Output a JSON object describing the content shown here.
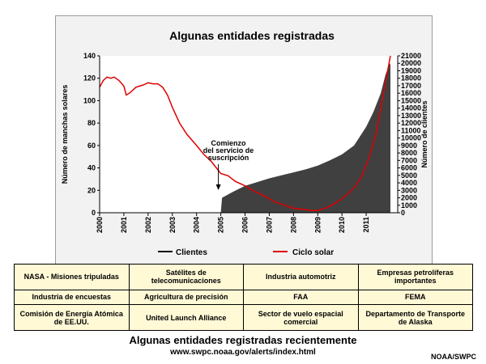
{
  "chart_data": {
    "type": "area+line",
    "title": "Algunas entidades registradas",
    "x_ticks": [
      "2000",
      "2001",
      "2002",
      "2003",
      "2004",
      "2005",
      "2006",
      "2007",
      "2008",
      "2009",
      "2010",
      "2011"
    ],
    "xlim": [
      2000,
      2012.3
    ],
    "y_left_label": "Número de manchas solares",
    "y_left_ticks": [
      0,
      20,
      40,
      60,
      80,
      100,
      120,
      140
    ],
    "y_left_lim": [
      0,
      140
    ],
    "y_right_label": "Número de clientes",
    "y_right_ticks": [
      0,
      1000,
      2000,
      3000,
      4000,
      5000,
      6000,
      7000,
      8000,
      9000,
      10000,
      11000,
      12000,
      13000,
      14000,
      15000,
      16000,
      17000,
      18000,
      19000,
      20000,
      21000
    ],
    "y_right_lim": [
      0,
      21000
    ],
    "series": [
      {
        "name": "Clientes",
        "axis": "right",
        "color": "#404040",
        "x": [
          2005.0,
          2005.05,
          2005.5,
          2006,
          2006.5,
          2007,
          2007.5,
          2008,
          2008.5,
          2009,
          2009.5,
          2010,
          2010.5,
          2011,
          2011.3,
          2011.6,
          2011.8,
          2011.95,
          2012.0
        ],
        "y": [
          0,
          2000,
          2800,
          3600,
          4100,
          4600,
          5000,
          5400,
          5800,
          6300,
          7000,
          7800,
          9000,
          11500,
          13500,
          16000,
          18500,
          19800,
          20000
        ]
      },
      {
        "name": "Ciclo solar",
        "axis": "left",
        "color": "#e00000",
        "x": [
          2000.0,
          2000.15,
          2000.3,
          2000.45,
          2000.6,
          2000.8,
          2001.0,
          2001.1,
          2001.25,
          2001.5,
          2001.8,
          2002.0,
          2002.2,
          2002.4,
          2002.6,
          2002.8,
          2003.0,
          2003.3,
          2003.6,
          2004.0,
          2004.3,
          2004.6,
          2005.0,
          2005.3,
          2005.6,
          2006.0,
          2006.4,
          2006.8,
          2007.2,
          2007.6,
          2008.0,
          2008.4,
          2008.8,
          2009.0,
          2009.3,
          2009.6,
          2009.9,
          2010.2,
          2010.5,
          2010.8,
          2011.1,
          2011.4,
          2011.7,
          2012.0
        ],
        "y": [
          112,
          118,
          121,
          120,
          121,
          118,
          113,
          105,
          107,
          112,
          114,
          116,
          115,
          115,
          112,
          105,
          94,
          80,
          70,
          60,
          52,
          46,
          35,
          33,
          28,
          24,
          19,
          15,
          10,
          7,
          4,
          3,
          2,
          2,
          4,
          7,
          11,
          16,
          22,
          32,
          48,
          70,
          105,
          140
        ]
      }
    ],
    "annotation": {
      "lines": [
        "Comienzo",
        "del servicio de",
        "suscripción"
      ],
      "x": 2005.0
    },
    "legend": [
      {
        "label": "Clientes",
        "color": "#000000"
      },
      {
        "label": "Ciclo solar",
        "color": "#e00000"
      }
    ],
    "legend_position": "bottom"
  },
  "table": {
    "rows": [
      [
        "NASA - Misiones tripuladas",
        "Satélites de telecomunicaciones",
        "Industria automotriz",
        "Empresas petrolíferas importantes"
      ],
      [
        "Industria de encuestas",
        "Agricultura de precisión",
        "FAA",
        "FEMA"
      ],
      [
        "Comisión de Energía Atómica de EE.UU.",
        "United Launch Alliance",
        "Sector de vuelo espacial comercial",
        "Departamento de Transporte de Alaska"
      ]
    ]
  },
  "caption": {
    "title": "Algunas entidades registradas recientemente",
    "url": "www.swpc.noaa.gov/alerts/index.html",
    "credit": "NOAA/SWPC"
  }
}
